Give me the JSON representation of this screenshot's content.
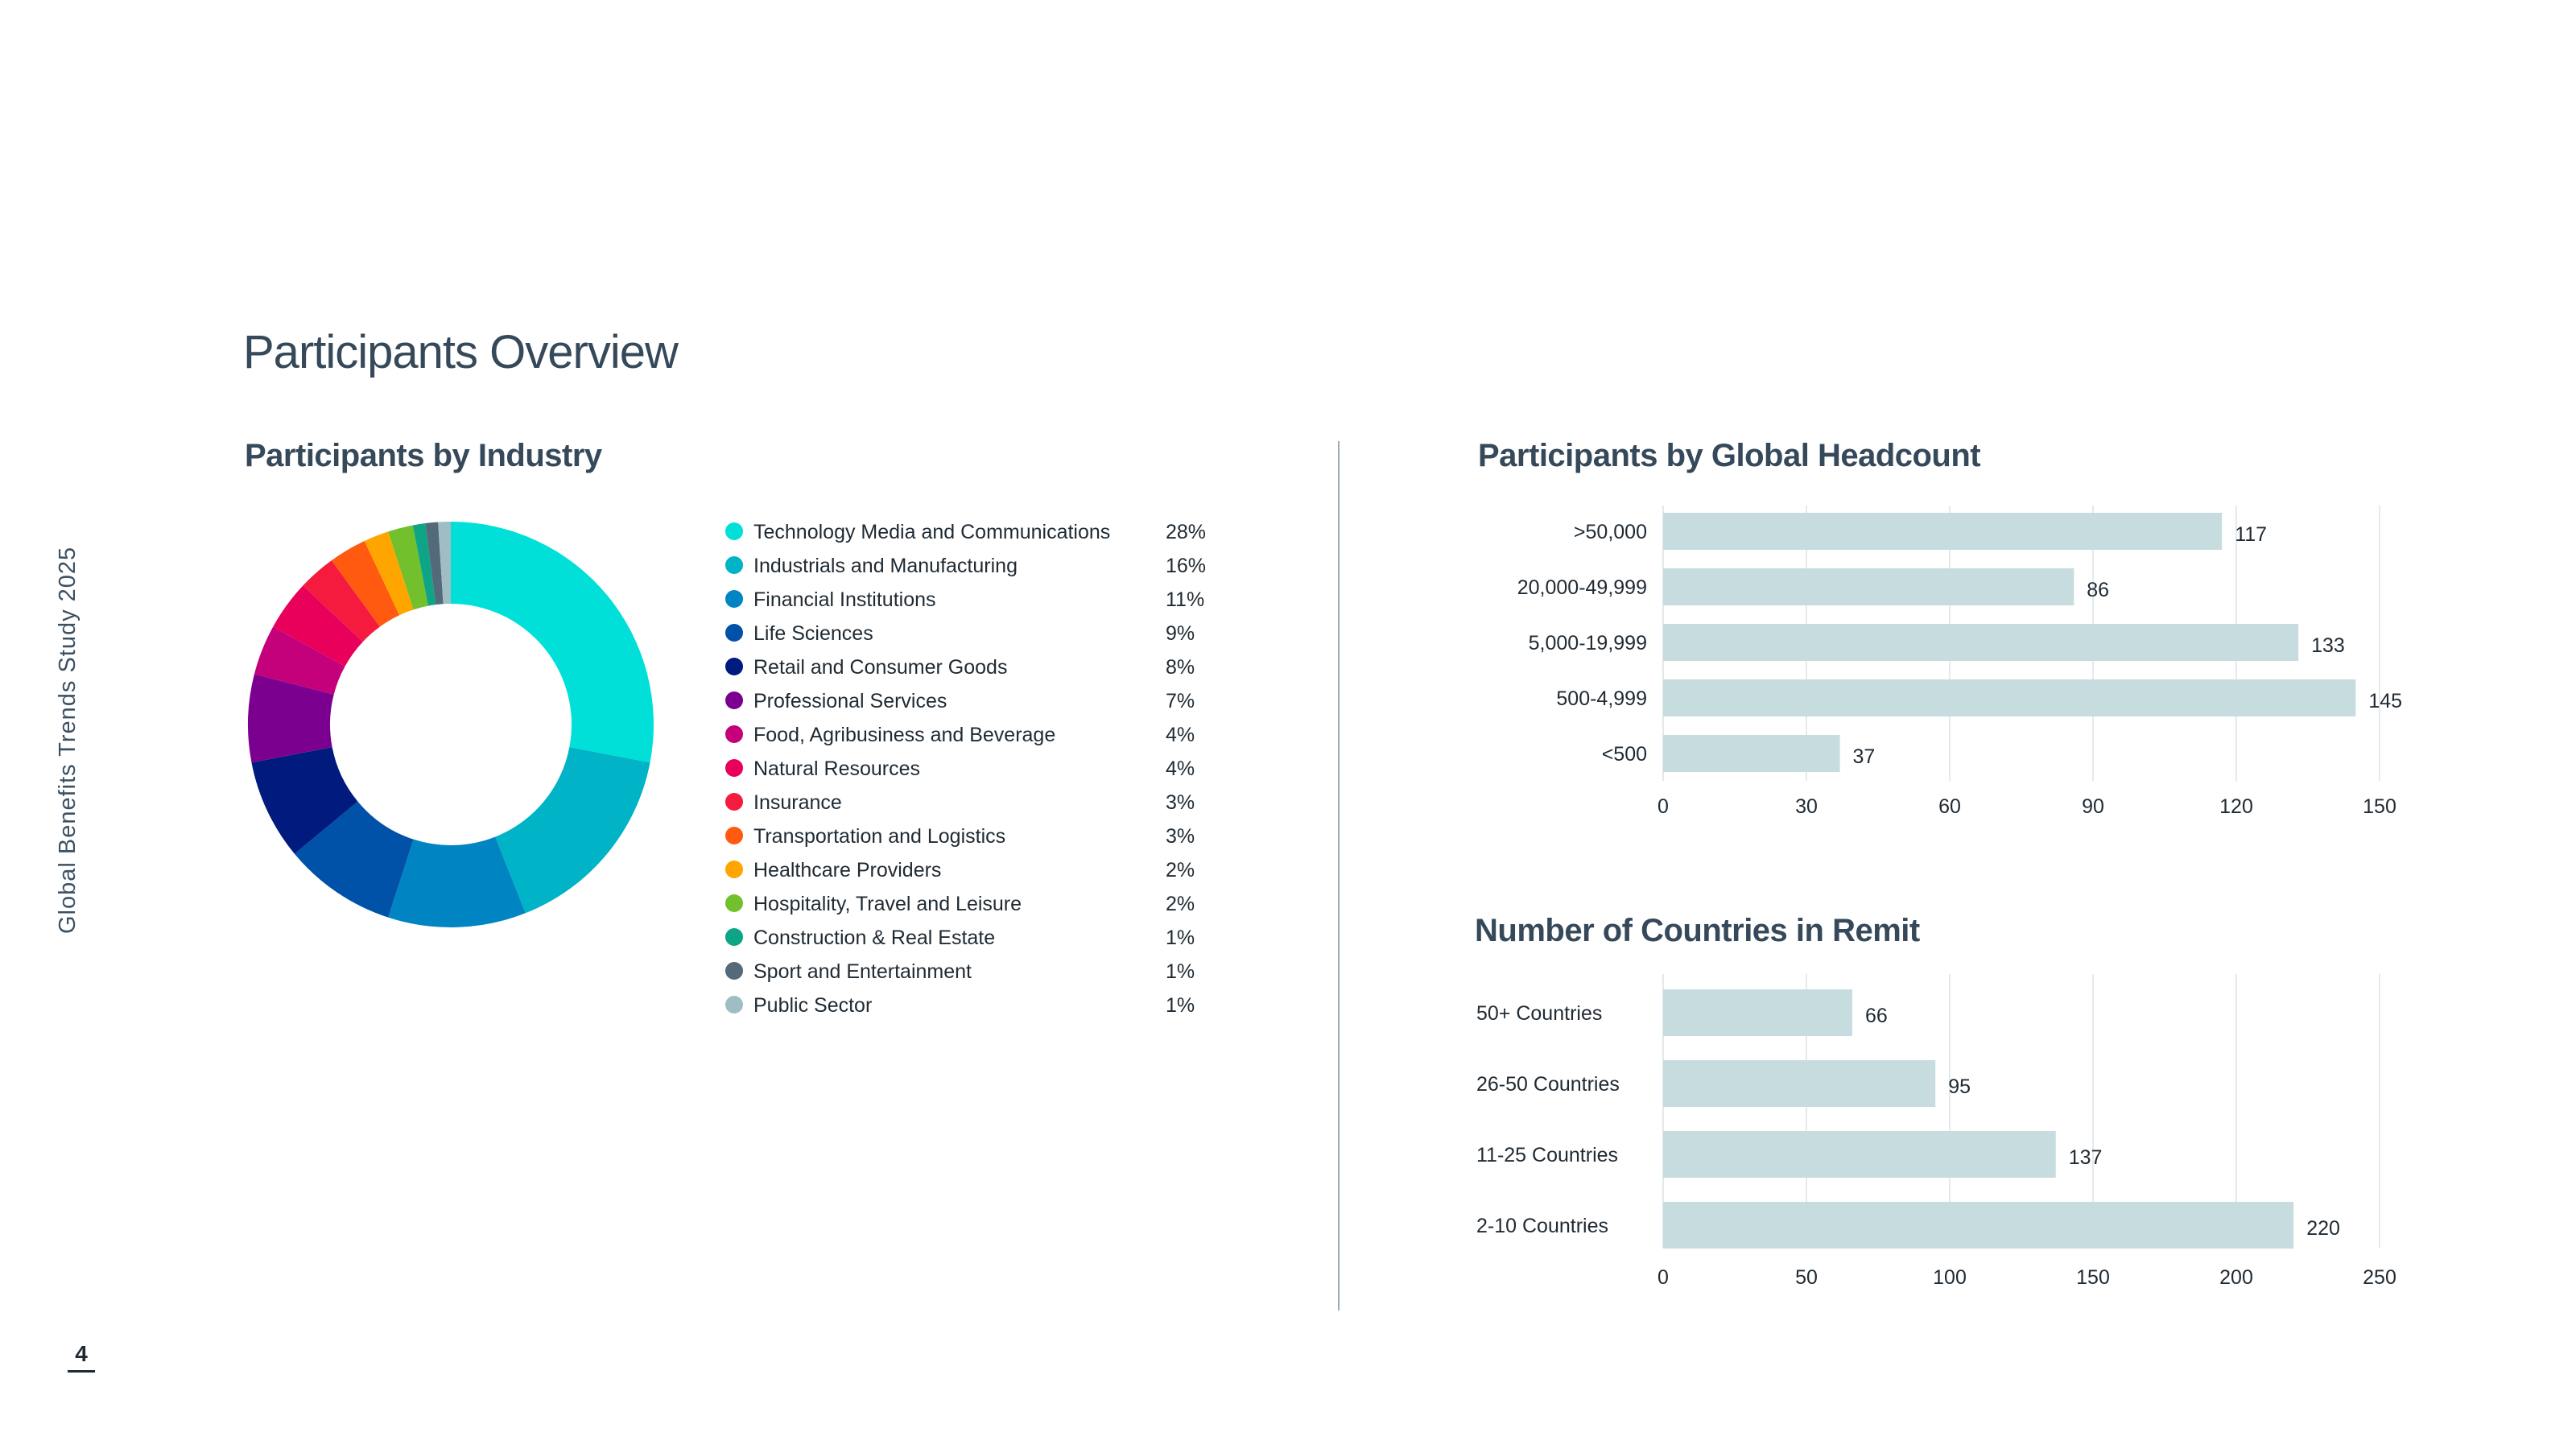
{
  "side_title": "Global Benefits Trends Study 2025",
  "page_title": "Participants Overview",
  "page_number": "4",
  "chart_data": [
    {
      "type": "pie",
      "title": "Participants by Industry",
      "categories": [
        "Technology Media and Communications",
        "Industrials and Manufacturing",
        "Financial Institutions",
        "Life Sciences",
        "Retail and Consumer Goods",
        "Professional Services",
        "Food, Agribusiness and Beverage",
        "Natural Resources",
        "Insurance",
        "Transportation and Logistics",
        "Healthcare Providers",
        "Hospitality, Travel and Leisure",
        "Construction & Real Estate",
        "Sport and Entertainment",
        "Public Sector"
      ],
      "values": [
        28,
        16,
        11,
        9,
        8,
        7,
        4,
        4,
        3,
        3,
        2,
        2,
        1,
        1,
        1
      ],
      "labels": [
        "28%",
        "16%",
        "11%",
        "9%",
        "8%",
        "7%",
        "4%",
        "4%",
        "3%",
        "3%",
        "2%",
        "2%",
        "1%",
        "1%",
        "1%"
      ],
      "colors": [
        "#00e0d9",
        "#00b3c6",
        "#0085c2",
        "#0051a8",
        "#001a7d",
        "#7b0090",
        "#c4007a",
        "#e8005a",
        "#f51b3e",
        "#ff5a0f",
        "#ffa500",
        "#72c02c",
        "#0ea486",
        "#546a7b",
        "#9fbec4"
      ],
      "donut": true
    },
    {
      "type": "bar",
      "orientation": "horizontal",
      "title": "Participants by Global Headcount",
      "categories": [
        ">50,000",
        "20,000-49,999",
        "5,000-19,999",
        "500-4,999",
        "<500"
      ],
      "values": [
        117,
        86,
        133,
        145,
        37
      ],
      "xlim": [
        0,
        150
      ],
      "ticks": [
        0,
        30,
        60,
        90,
        120,
        150
      ],
      "color": "#c7dcdf",
      "grid": true
    },
    {
      "type": "bar",
      "orientation": "horizontal",
      "title": "Number of Countries in Remit",
      "categories": [
        "50+ Countries",
        "26-50 Countries",
        "11-25 Countries",
        "2-10 Countries"
      ],
      "values": [
        66,
        95,
        137,
        220
      ],
      "xlim": [
        0,
        250
      ],
      "ticks": [
        0,
        50,
        100,
        150,
        200,
        250
      ],
      "color": "#c7dcdf",
      "grid": true
    }
  ]
}
